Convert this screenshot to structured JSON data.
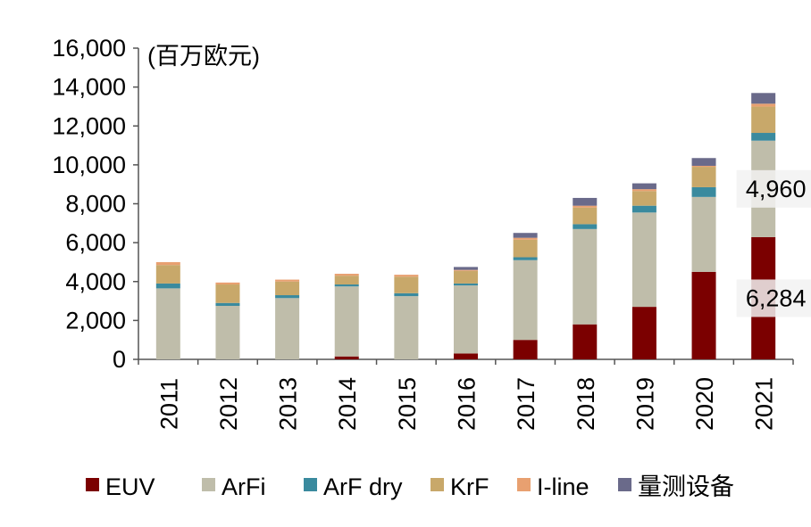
{
  "chart_data": {
    "type": "bar",
    "stacked": true,
    "unit_label": "(百万欧元)",
    "ylim": [
      0,
      16000
    ],
    "y_ticks": [
      "0",
      "2,000",
      "4,000",
      "6,000",
      "8,000",
      "10,000",
      "12,000",
      "14,000",
      "16,000"
    ],
    "y_tick_values": [
      0,
      2000,
      4000,
      6000,
      8000,
      10000,
      12000,
      14000,
      16000
    ],
    "categories": [
      "2011",
      "2012",
      "2013",
      "2014",
      "2015",
      "2016",
      "2017",
      "2018",
      "2019",
      "2020",
      "2021"
    ],
    "series": [
      {
        "name": "EUV",
        "color": "#7b0000",
        "values": [
          0,
          0,
          0,
          150,
          0,
          300,
          1000,
          1800,
          2700,
          4500,
          6284
        ]
      },
      {
        "name": "ArFi",
        "color": "#bfbdaa",
        "values": [
          3650,
          2750,
          3150,
          3600,
          3250,
          3500,
          4100,
          4900,
          4850,
          3850,
          4960
        ]
      },
      {
        "name": "ArF dry",
        "color": "#3a8a9e",
        "values": [
          250,
          150,
          150,
          100,
          150,
          100,
          150,
          250,
          350,
          500,
          400
        ]
      },
      {
        "name": "KrF",
        "color": "#c8a86a",
        "values": [
          950,
          950,
          700,
          450,
          850,
          650,
          900,
          850,
          750,
          1050,
          1350
        ]
      },
      {
        "name": "I-line",
        "color": "#e8a070",
        "values": [
          150,
          100,
          100,
          100,
          100,
          50,
          100,
          100,
          100,
          50,
          150
        ]
      },
      {
        "name": "量测设备",
        "color": "#6a6a8a",
        "values": [
          0,
          0,
          0,
          0,
          0,
          150,
          250,
          400,
          300,
          400,
          550
        ]
      }
    ],
    "annotations": [
      {
        "category": "2021",
        "series": "ArFi",
        "text": "4,960"
      },
      {
        "category": "2021",
        "series": "EUV",
        "text": "6,284"
      }
    ],
    "legend_position": "bottom",
    "grid": false
  }
}
